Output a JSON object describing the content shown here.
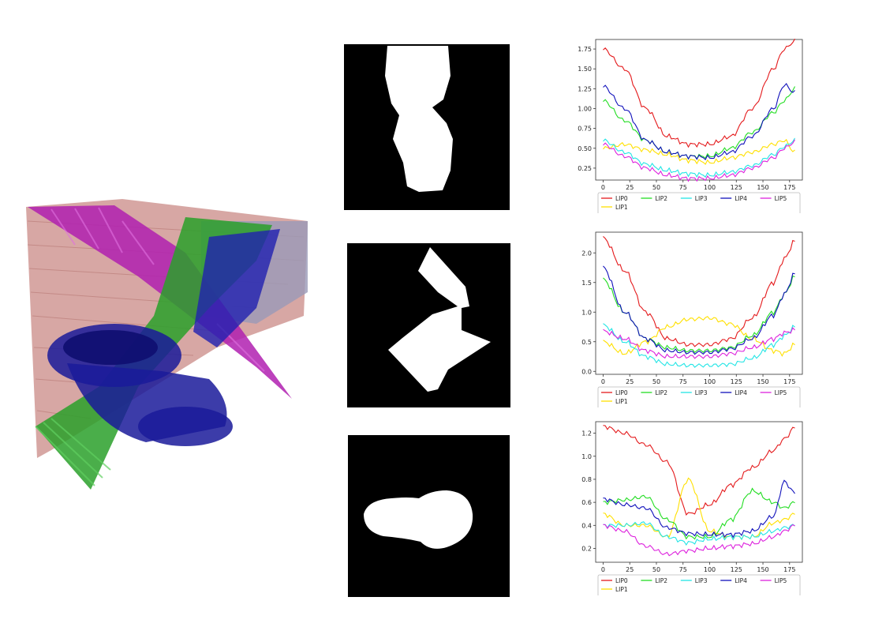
{
  "chart_data": [
    {
      "type": "line",
      "x": [
        0,
        20,
        40,
        60,
        80,
        100,
        120,
        140,
        160,
        170,
        180
      ],
      "xticks": [
        "0",
        "25",
        "50",
        "75",
        "100",
        "125",
        "150",
        "175"
      ],
      "yticks": [
        "0.25",
        "0.50",
        "0.75",
        "1.00",
        "1.25",
        "1.50",
        "1.75"
      ],
      "ylim": [
        0.1,
        1.87
      ],
      "series": [
        {
          "name": "LIP0",
          "color": "#e41a1c",
          "values": [
            1.75,
            1.5,
            1.0,
            0.65,
            0.55,
            0.55,
            0.65,
            1.0,
            1.5,
            1.75,
            1.85
          ]
        },
        {
          "name": "LIP1",
          "color": "#ffe000",
          "values": [
            0.5,
            0.55,
            0.48,
            0.42,
            0.35,
            0.32,
            0.38,
            0.45,
            0.55,
            0.6,
            0.45
          ]
        },
        {
          "name": "LIP2",
          "color": "#22dd22",
          "values": [
            1.1,
            0.85,
            0.6,
            0.45,
            0.4,
            0.4,
            0.5,
            0.7,
            0.95,
            1.1,
            1.25
          ]
        },
        {
          "name": "LIP3",
          "color": "#22e5e5",
          "values": [
            0.6,
            0.45,
            0.3,
            0.22,
            0.18,
            0.16,
            0.2,
            0.28,
            0.42,
            0.52,
            0.6
          ]
        },
        {
          "name": "LIP4",
          "color": "#1010bb",
          "values": [
            1.28,
            1.0,
            0.6,
            0.45,
            0.4,
            0.38,
            0.45,
            0.65,
            1.0,
            1.3,
            1.2
          ]
        },
        {
          "name": "LIP5",
          "color": "#dd22dd",
          "values": [
            0.55,
            0.4,
            0.25,
            0.16,
            0.12,
            0.12,
            0.16,
            0.25,
            0.38,
            0.5,
            0.58
          ]
        }
      ]
    },
    {
      "type": "line",
      "x": [
        0,
        20,
        40,
        60,
        80,
        100,
        120,
        140,
        160,
        170,
        180
      ],
      "xticks": [
        "0",
        "25",
        "50",
        "75",
        "100",
        "125",
        "150",
        "175"
      ],
      "yticks": [
        "0.0",
        "0.5",
        "1.0",
        "1.5",
        "2.0"
      ],
      "ylim": [
        -0.05,
        2.35
      ],
      "series": [
        {
          "name": "LIP0",
          "color": "#e41a1c",
          "values": [
            2.25,
            1.7,
            1.0,
            0.55,
            0.45,
            0.45,
            0.55,
            0.9,
            1.5,
            1.9,
            2.2
          ]
        },
        {
          "name": "LIP1",
          "color": "#ffe000",
          "values": [
            0.5,
            0.3,
            0.5,
            0.75,
            0.88,
            0.9,
            0.8,
            0.55,
            0.35,
            0.3,
            0.45
          ]
        },
        {
          "name": "LIP2",
          "color": "#22dd22",
          "values": [
            1.55,
            1.0,
            0.55,
            0.4,
            0.35,
            0.35,
            0.4,
            0.6,
            1.0,
            1.3,
            1.6
          ]
        },
        {
          "name": "LIP3",
          "color": "#22e5e5",
          "values": [
            0.78,
            0.5,
            0.25,
            0.12,
            0.1,
            0.1,
            0.12,
            0.22,
            0.45,
            0.6,
            0.75
          ]
        },
        {
          "name": "LIP4",
          "color": "#1010bb",
          "values": [
            1.75,
            1.0,
            0.55,
            0.35,
            0.32,
            0.32,
            0.38,
            0.55,
            0.95,
            1.3,
            1.65
          ]
        },
        {
          "name": "LIP5",
          "color": "#dd22dd",
          "values": [
            0.68,
            0.55,
            0.35,
            0.25,
            0.25,
            0.25,
            0.3,
            0.4,
            0.55,
            0.65,
            0.7
          ]
        }
      ]
    },
    {
      "type": "line",
      "x": [
        0,
        20,
        40,
        60,
        80,
        100,
        120,
        140,
        160,
        170,
        180
      ],
      "xticks": [
        "0",
        "25",
        "50",
        "75",
        "100",
        "125",
        "150",
        "175"
      ],
      "yticks": [
        "0.2",
        "0.4",
        "0.6",
        "0.8",
        "1.0",
        "1.2"
      ],
      "ylim": [
        0.08,
        1.3
      ],
      "series": [
        {
          "name": "LIP0",
          "color": "#e41a1c",
          "values": [
            1.26,
            1.2,
            1.1,
            0.95,
            0.5,
            0.58,
            0.75,
            0.9,
            1.05,
            1.15,
            1.25
          ]
        },
        {
          "name": "LIP1",
          "color": "#ffe000",
          "values": [
            0.5,
            0.4,
            0.4,
            0.3,
            0.8,
            0.35,
            0.3,
            0.3,
            0.42,
            0.45,
            0.5
          ]
        },
        {
          "name": "LIP2",
          "color": "#22dd22",
          "values": [
            0.6,
            0.62,
            0.65,
            0.45,
            0.3,
            0.3,
            0.45,
            0.7,
            0.6,
            0.55,
            0.6
          ]
        },
        {
          "name": "LIP3",
          "color": "#22e5e5",
          "values": [
            0.4,
            0.4,
            0.42,
            0.3,
            0.25,
            0.28,
            0.3,
            0.3,
            0.35,
            0.38,
            0.4
          ]
        },
        {
          "name": "LIP4",
          "color": "#1010bb",
          "values": [
            0.63,
            0.58,
            0.55,
            0.38,
            0.33,
            0.32,
            0.32,
            0.35,
            0.48,
            0.78,
            0.68
          ]
        },
        {
          "name": "LIP5",
          "color": "#dd22dd",
          "values": [
            0.4,
            0.35,
            0.22,
            0.15,
            0.18,
            0.2,
            0.22,
            0.24,
            0.3,
            0.35,
            0.4
          ]
        }
      ]
    }
  ],
  "legend_order": [
    "LIP0",
    "LIP2",
    "LIP3",
    "LIP4",
    "LIP5",
    "LIP1"
  ]
}
